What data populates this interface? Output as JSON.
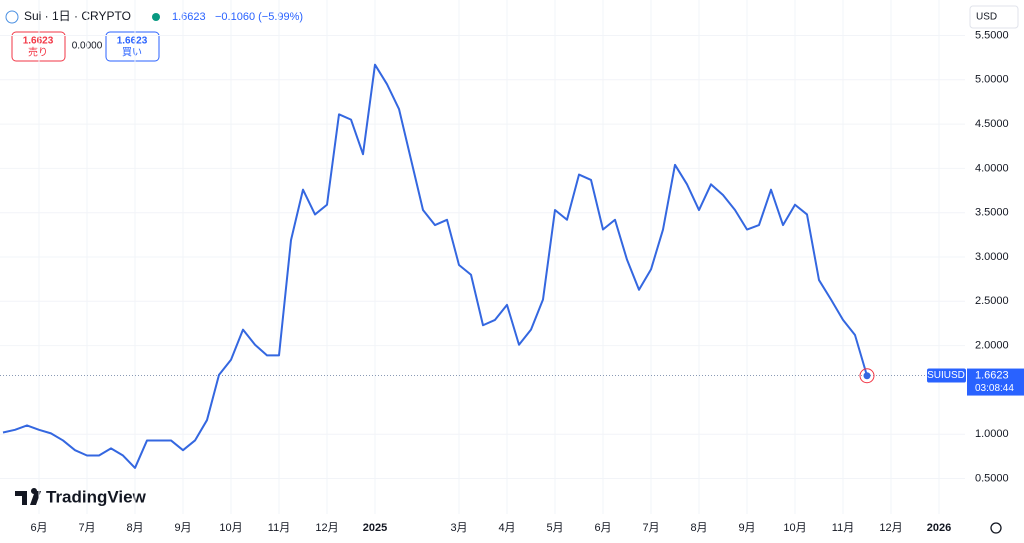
{
  "header": {
    "symbol": "Sui · 1日 · CRYPTO",
    "price": "1.6623",
    "change": "−0.1060 (−5.99%)"
  },
  "trade": {
    "sell_price": "1.6623",
    "sell_label": "売り",
    "spread": "0.0000",
    "buy_price": "1.6623",
    "buy_label": "買い"
  },
  "currency": "USD",
  "logo": "TradingView",
  "chart_data": {
    "type": "line",
    "symbol_label": "SUIUSD",
    "last_price": 1.6623,
    "countdown": "03:08:44",
    "grid": true,
    "categories": [
      null,
      null,
      null,
      "6月",
      null,
      null,
      null,
      "7月",
      null,
      null,
      null,
      "8月",
      null,
      null,
      null,
      "9月",
      null,
      null,
      null,
      "10月",
      null,
      null,
      null,
      "11月",
      null,
      null,
      null,
      "12月",
      null,
      null,
      null,
      "2025",
      null,
      null,
      null,
      null,
      null,
      null,
      "3月",
      null,
      null,
      null,
      "4月",
      null,
      null,
      null,
      "5月",
      null,
      null,
      null,
      "6月",
      null,
      null,
      null,
      "7月",
      null,
      null,
      null,
      "8月",
      null,
      null,
      null,
      "9月",
      null,
      null,
      null,
      "10月",
      null,
      null,
      null,
      "11月",
      null,
      null,
      null,
      "12月",
      null,
      null,
      null,
      "2026"
    ],
    "series": [
      {
        "name": "SUIUSD",
        "color": "#3467e0",
        "values": [
          1.02,
          1.05,
          1.1,
          1.05,
          1.01,
          0.93,
          0.82,
          0.76,
          0.76,
          0.84,
          0.76,
          0.62,
          0.93,
          0.93,
          0.93,
          0.82,
          0.93,
          1.16,
          1.67,
          1.84,
          2.18,
          2.01,
          1.89,
          1.89,
          3.19,
          3.76,
          3.48,
          3.59,
          4.61,
          4.55,
          4.16,
          5.17,
          4.95,
          4.67,
          4.1,
          3.53,
          3.36,
          3.42,
          2.91,
          2.8,
          2.23,
          2.29,
          2.46,
          2.01,
          2.18,
          2.52,
          3.53,
          3.42,
          3.93,
          3.87,
          3.31,
          3.42,
          2.97,
          2.63,
          2.86,
          3.31,
          4.04,
          3.82,
          3.53,
          3.82,
          3.7,
          3.53,
          3.31,
          3.36,
          3.76,
          3.36,
          3.59,
          3.48,
          2.74,
          2.52,
          2.29,
          2.12,
          1.66,
          null,
          null,
          null,
          null,
          null,
          null
        ]
      }
    ],
    "ylim": [
      0.1,
      5.9
    ],
    "yticks": [
      {
        "value": 0.5,
        "label": "0.5000"
      },
      {
        "value": 1.0,
        "label": "1.0000"
      },
      {
        "value": 2.0,
        "label": "2.0000"
      },
      {
        "value": 2.5,
        "label": "2.5000"
      },
      {
        "value": 3.0,
        "label": "3.0000"
      },
      {
        "value": 3.5,
        "label": "3.5000"
      },
      {
        "value": 4.0,
        "label": "4.0000"
      },
      {
        "value": 4.5,
        "label": "4.5000"
      },
      {
        "value": 5.0,
        "label": "5.0000"
      },
      {
        "value": 5.5,
        "label": "5.5000"
      }
    ]
  }
}
